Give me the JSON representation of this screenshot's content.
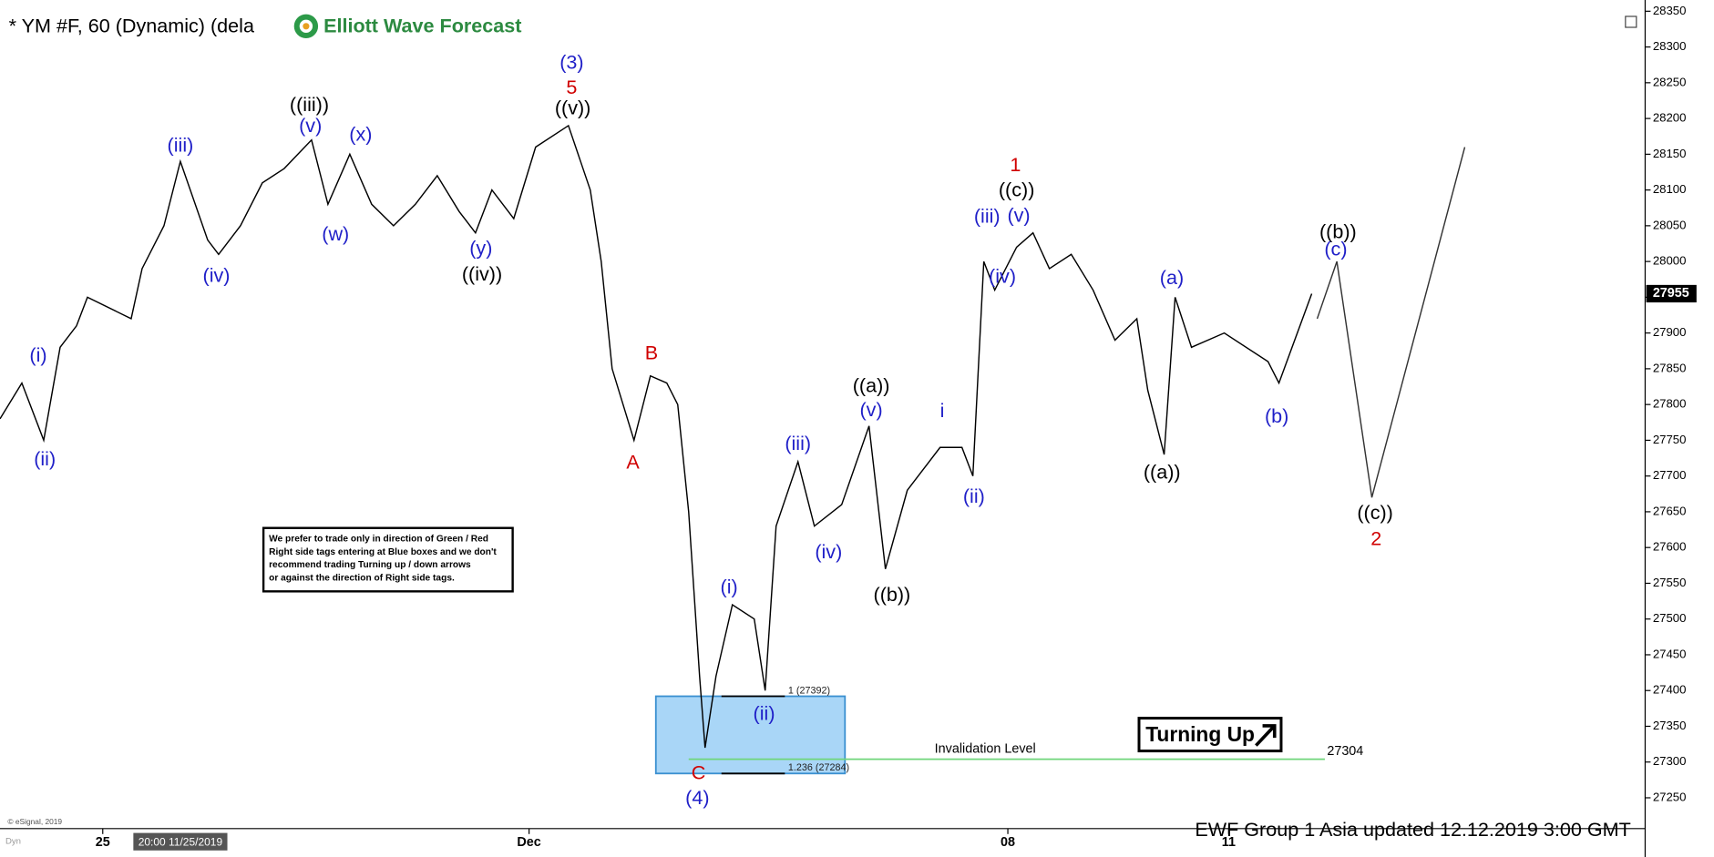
{
  "chart_data": {
    "type": "line",
    "title": "* YM #F, 60 (Dynamic) (dela",
    "logo": "Elliott Wave Forecast",
    "xlim": [
      0,
      150
    ],
    "xticks": [
      {
        "value": 9.4,
        "label": "25"
      },
      {
        "value": 48.4,
        "label": "Dec"
      },
      {
        "value": 92.2,
        "label": "08"
      },
      {
        "value": 112.4,
        "label": "11"
      }
    ],
    "cursor_label": "20:00 11/25/2019",
    "ylim": [
      27210,
      28355
    ],
    "yticks": [
      27250,
      27300,
      27350,
      27400,
      27450,
      27500,
      27550,
      27600,
      27650,
      27700,
      27750,
      27800,
      27850,
      27900,
      27950,
      28000,
      28050,
      28100,
      28150,
      28200,
      28250,
      28300,
      28350
    ],
    "last_price": 27955,
    "series": [
      {
        "color": "#000000",
        "x": [
          0,
          2,
          4,
          5.5,
          7,
          8,
          12,
          13,
          15,
          16.5,
          19,
          20,
          22,
          24,
          26,
          28.5,
          30,
          32,
          34,
          36,
          38,
          40,
          42,
          43.5,
          45,
          47,
          49,
          52,
          54,
          55,
          56,
          58,
          59.5,
          61,
          62,
          63,
          64,
          64.5,
          65.5,
          67,
          69,
          70,
          71,
          73,
          74.5,
          77,
          79.5,
          81,
          83,
          86,
          88,
          89,
          90,
          91,
          93,
          94.5,
          96,
          98,
          100,
          102,
          104,
          105,
          106.5,
          107.5,
          109,
          112,
          116,
          117,
          120
        ],
        "values": [
          27780,
          27830,
          27750,
          27880,
          27910,
          27950,
          27920,
          27990,
          28050,
          28140,
          28030,
          28010,
          28050,
          28110,
          28130,
          28170,
          28080,
          28150,
          28080,
          28050,
          28080,
          28120,
          28070,
          28040,
          28100,
          28060,
          28160,
          28190,
          28100,
          28000,
          27850,
          27750,
          27840,
          27830,
          27800,
          27650,
          27420,
          27320,
          27420,
          27520,
          27500,
          27400,
          27630,
          27720,
          27630,
          27660,
          27770,
          27570,
          27680,
          27740,
          27740,
          27700,
          28000,
          27960,
          28020,
          28040,
          27990,
          28010,
          27960,
          27890,
          27920,
          27820,
          27730,
          27950,
          27880,
          27900,
          27860,
          27830,
          27955
        ]
      },
      {
        "color": "#333333",
        "x": [
          120.5,
          122.3,
          125.5,
          134
        ],
        "values": [
          27920,
          28000,
          27670,
          28160
        ]
      }
    ],
    "fib_levels": [
      {
        "label": "1 (27392)",
        "value": 27392
      },
      {
        "label": "1.236 (27284)",
        "value": 27284
      }
    ],
    "invalidation": {
      "label": "Invalidation Level",
      "value": 27304
    },
    "signal": "Turning Up",
    "note": [
      "We prefer to trade only in direction of Green / Red",
      "Right side tags entering at Blue boxes and we don't",
      "recommend trading Turning up / down arrows",
      "or against the direction of Right side tags."
    ],
    "footer": "EWF Group  1 Asia  updated 12.12.2019 3:00 GMT",
    "copyright": "© eSignal, 2019",
    "corner": "Dyn",
    "annotations": [
      {
        "text": "(i)",
        "color": "#1f1fc8"
      },
      {
        "text": "(ii)",
        "color": "#1f1fc8"
      },
      {
        "text": "(iii)",
        "color": "#1f1fc8"
      },
      {
        "text": "(iv)",
        "color": "#1f1fc8"
      },
      {
        "text": "((iii))",
        "color": "#000000"
      },
      {
        "text": "(v)",
        "color": "#1f1fc8"
      },
      {
        "text": "(x)",
        "color": "#1f1fc8"
      },
      {
        "text": "(w)",
        "color": "#1f1fc8"
      },
      {
        "text": "(y)",
        "color": "#1f1fc8"
      },
      {
        "text": "((iv))",
        "color": "#000000"
      },
      {
        "text": "(3)",
        "color": "#1f1fc8"
      },
      {
        "text": "5",
        "color": "#d00000"
      },
      {
        "text": "((v))",
        "color": "#000000"
      },
      {
        "text": "B",
        "color": "#d00000"
      },
      {
        "text": "A",
        "color": "#d00000"
      },
      {
        "text": "C",
        "color": "#d00000"
      },
      {
        "text": "(4)",
        "color": "#1f1fc8"
      },
      {
        "text": "(i)",
        "color": "#1f1fc8"
      },
      {
        "text": "(ii)",
        "color": "#1f1fc8"
      },
      {
        "text": "(iii)",
        "color": "#1f1fc8"
      },
      {
        "text": "(iv)",
        "color": "#1f1fc8"
      },
      {
        "text": "(v)",
        "color": "#1f1fc8"
      },
      {
        "text": "((a))",
        "color": "#000000"
      },
      {
        "text": "((b))",
        "color": "#000000"
      },
      {
        "text": "i",
        "color": "#1f1fc8"
      },
      {
        "text": "(ii)",
        "color": "#1f1fc8"
      },
      {
        "text": "(iii)",
        "color": "#1f1fc8"
      },
      {
        "text": "(iv)",
        "color": "#1f1fc8"
      },
      {
        "text": "(v)",
        "color": "#1f1fc8"
      },
      {
        "text": "((c))",
        "color": "#000000"
      },
      {
        "text": "1",
        "color": "#d00000"
      },
      {
        "text": "(a)",
        "color": "#1f1fc8"
      },
      {
        "text": "((a))",
        "color": "#000000"
      },
      {
        "text": "(b)",
        "color": "#1f1fc8"
      },
      {
        "text": "((b))",
        "color": "#000000"
      },
      {
        "text": "(c)",
        "color": "#1f1fc8"
      },
      {
        "text": "((c))",
        "color": "#000000"
      },
      {
        "text": "2",
        "color": "#d00000"
      }
    ]
  }
}
